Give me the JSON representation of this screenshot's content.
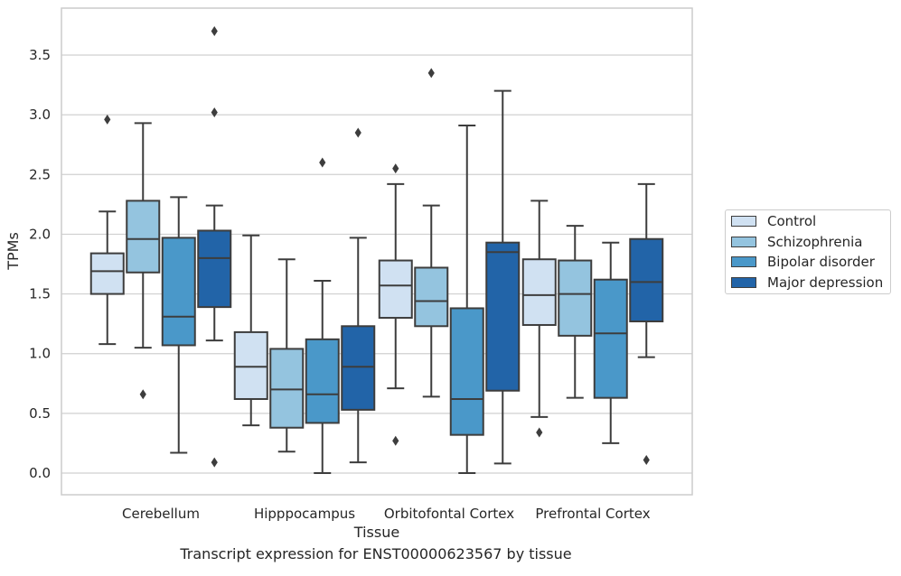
{
  "caption": "Transcript expression for ENST00000623567 by tissue",
  "chart_data": {
    "type": "box",
    "xlabel": "Tissue",
    "ylabel": "TPMs",
    "ylim": [
      -0.18,
      3.92
    ],
    "yticks": [
      0.0,
      0.5,
      1.0,
      1.5,
      2.0,
      2.5,
      3.0,
      3.5
    ],
    "ytick_labels": [
      "0.0",
      "0.5",
      "1.0",
      "1.5",
      "2.0",
      "2.5",
      "3.0",
      "3.5"
    ],
    "grid": "horizontal",
    "legend_position": "right",
    "categories": [
      "Cerebellum",
      "Hipppocampus",
      "Orbitofontal Cortex",
      "Prefrontal Cortex"
    ],
    "series": [
      {
        "name": "Control",
        "color": "#d0e1f2",
        "boxes": [
          {
            "whislo": 1.08,
            "q1": 1.5,
            "med": 1.69,
            "q3": 1.84,
            "whishi": 2.19,
            "fliers": [
              2.96
            ]
          },
          {
            "whislo": 0.4,
            "q1": 0.62,
            "med": 0.89,
            "q3": 1.18,
            "whishi": 1.99,
            "fliers": []
          },
          {
            "whislo": 0.71,
            "q1": 1.3,
            "med": 1.57,
            "q3": 1.78,
            "whishi": 2.42,
            "fliers": [
              2.55,
              0.27
            ]
          },
          {
            "whislo": 0.47,
            "q1": 1.24,
            "med": 1.49,
            "q3": 1.79,
            "whishi": 2.28,
            "fliers": [
              0.34
            ]
          }
        ]
      },
      {
        "name": "Schizophrenia",
        "color": "#94c4df",
        "boxes": [
          {
            "whislo": 1.05,
            "q1": 1.68,
            "med": 1.96,
            "q3": 2.28,
            "whishi": 2.93,
            "fliers": [
              0.66
            ]
          },
          {
            "whislo": 0.18,
            "q1": 0.38,
            "med": 0.7,
            "q3": 1.04,
            "whishi": 1.79,
            "fliers": []
          },
          {
            "whislo": 0.64,
            "q1": 1.23,
            "med": 1.44,
            "q3": 1.72,
            "whishi": 2.24,
            "fliers": [
              3.35
            ]
          },
          {
            "whislo": 0.63,
            "q1": 1.15,
            "med": 1.5,
            "q3": 1.78,
            "whishi": 2.07,
            "fliers": []
          }
        ]
      },
      {
        "name": "Bipolar disorder",
        "color": "#4a98c9",
        "boxes": [
          {
            "whislo": 0.17,
            "q1": 1.07,
            "med": 1.31,
            "q3": 1.97,
            "whishi": 2.31,
            "fliers": []
          },
          {
            "whislo": 0.0,
            "q1": 0.42,
            "med": 0.66,
            "q3": 1.12,
            "whishi": 1.61,
            "fliers": [
              2.6
            ]
          },
          {
            "whislo": 0.0,
            "q1": 0.32,
            "med": 0.62,
            "q3": 1.38,
            "whishi": 2.91,
            "fliers": []
          },
          {
            "whislo": 0.25,
            "q1": 0.63,
            "med": 1.17,
            "q3": 1.62,
            "whishi": 1.93,
            "fliers": []
          }
        ]
      },
      {
        "name": "Major depression",
        "color": "#2264a8",
        "boxes": [
          {
            "whislo": 1.11,
            "q1": 1.39,
            "med": 1.8,
            "q3": 2.03,
            "whishi": 2.24,
            "fliers": [
              3.02,
              3.7,
              0.09
            ]
          },
          {
            "whislo": 0.09,
            "q1": 0.53,
            "med": 0.89,
            "q3": 1.23,
            "whishi": 1.97,
            "fliers": [
              2.85
            ]
          },
          {
            "whislo": 0.08,
            "q1": 0.69,
            "med": 1.85,
            "q3": 1.93,
            "whishi": 3.2,
            "fliers": []
          },
          {
            "whislo": 0.97,
            "q1": 1.27,
            "med": 1.6,
            "q3": 1.96,
            "whishi": 2.42,
            "fliers": [
              0.11
            ]
          }
        ]
      }
    ]
  }
}
